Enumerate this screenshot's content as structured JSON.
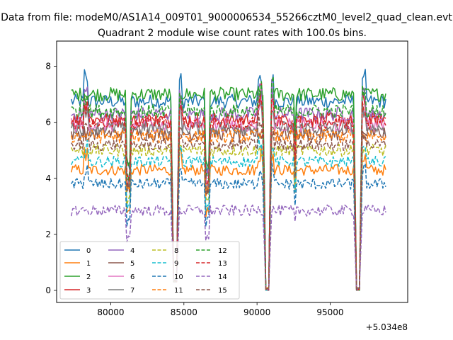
{
  "chart_data": {
    "type": "line",
    "suptitle": "Data from file: modeM0/AS1A14_009T01_9000006534_55266cztM0_level2_quad_clean.evt",
    "title": "Quadrant 2 module wise count rates with 100.0s bins.",
    "xlabel": "",
    "ylabel": "",
    "offset_label": "+5.034e8",
    "xlim": [
      76300,
      100300
    ],
    "ylim": [
      -0.43,
      8.9
    ],
    "x_start": 77300,
    "x_end": 98800,
    "x_step": 100,
    "x_ticks": [
      80000,
      85000,
      90000,
      95000
    ],
    "x_tick_labels": [
      "80000",
      "85000",
      "90000",
      "95000"
    ],
    "y_ticks": [
      0,
      2,
      4,
      6,
      8
    ],
    "y_tick_labels": [
      "0",
      "2",
      "4",
      "6",
      "8"
    ],
    "gaps": [
      {
        "center": 84400,
        "half_width": 150,
        "floor": 0.3
      },
      {
        "center": 90700,
        "half_width": 150,
        "floor": 0.0
      },
      {
        "center": 96900,
        "half_width": 180,
        "floor": 0.0
      }
    ],
    "dips": [
      {
        "center": 81200,
        "half_width": 100,
        "depth": 0.35
      },
      {
        "center": 86600,
        "half_width": 100,
        "depth": 0.35
      },
      {
        "center": 92600,
        "half_width": 60,
        "depth": 0.2
      }
    ],
    "spikes": [
      {
        "center": 78300,
        "amp": 1.1
      },
      {
        "center": 84700,
        "amp": 1.0
      },
      {
        "center": 90200,
        "amp": 1.3
      },
      {
        "center": 91000,
        "amp": 1.2
      },
      {
        "center": 97300,
        "amp": 1.0
      }
    ],
    "series": [
      {
        "name": "0",
        "style": "solid",
        "color": "#1f77b4",
        "level": 6.75,
        "noise": 0.25
      },
      {
        "name": "1",
        "style": "solid",
        "color": "#ff7f0e",
        "level": 4.3,
        "noise": 0.2
      },
      {
        "name": "2",
        "style": "solid",
        "color": "#2ca02c",
        "level": 7.0,
        "noise": 0.25
      },
      {
        "name": "3",
        "style": "solid",
        "color": "#d62728",
        "level": 6.1,
        "noise": 0.25
      },
      {
        "name": "4",
        "style": "solid",
        "color": "#9467bd",
        "level": 6.3,
        "noise": 0.25
      },
      {
        "name": "5",
        "style": "solid",
        "color": "#8c564b",
        "level": 5.6,
        "noise": 0.25
      },
      {
        "name": "6",
        "style": "solid",
        "color": "#e377c2",
        "level": 5.9,
        "noise": 0.25
      },
      {
        "name": "7",
        "style": "solid",
        "color": "#7f7f7f",
        "level": 5.8,
        "noise": 0.25
      },
      {
        "name": "8",
        "style": "dashed",
        "color": "#bcbd22",
        "level": 5.0,
        "noise": 0.22
      },
      {
        "name": "9",
        "style": "dashed",
        "color": "#17becf",
        "level": 4.6,
        "noise": 0.2
      },
      {
        "name": "10",
        "style": "dashed",
        "color": "#1f77b4",
        "level": 3.8,
        "noise": 0.2
      },
      {
        "name": "11",
        "style": "dashed",
        "color": "#ff7f0e",
        "level": 5.5,
        "noise": 0.25
      },
      {
        "name": "12",
        "style": "dashed",
        "color": "#2ca02c",
        "level": 6.4,
        "noise": 0.25
      },
      {
        "name": "13",
        "style": "dashed",
        "color": "#d62728",
        "level": 6.0,
        "noise": 0.25
      },
      {
        "name": "14",
        "style": "dashed",
        "color": "#9467bd",
        "level": 2.85,
        "noise": 0.2
      },
      {
        "name": "15",
        "style": "dashed",
        "color": "#8c564b",
        "level": 5.2,
        "noise": 0.22
      }
    ]
  }
}
